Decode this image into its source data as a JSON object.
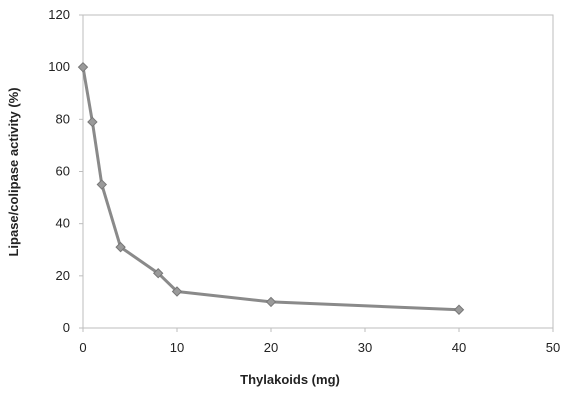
{
  "chart_data": {
    "type": "line",
    "title": "",
    "xlabel": "Thylakoids (mg)",
    "ylabel": "Lipase/colipase activity (%)",
    "xlim": [
      0,
      50
    ],
    "ylim": [
      0,
      120
    ],
    "xticks": [
      0,
      10,
      20,
      30,
      40,
      50
    ],
    "yticks": [
      0,
      20,
      40,
      60,
      80,
      100,
      120
    ],
    "xtick_labels": [
      "0",
      "10",
      "20",
      "30",
      "40",
      "50"
    ],
    "ytick_labels": [
      "0",
      "20",
      "40",
      "60",
      "80",
      "100",
      "120"
    ],
    "grid": false,
    "legend": "none",
    "series": [
      {
        "x": [
          0,
          1,
          2,
          4,
          8,
          10,
          20,
          40
        ],
        "y": [
          100,
          79,
          55,
          31,
          21,
          14,
          10,
          7
        ],
        "color": "#8a8a8a",
        "marker": "diamond"
      }
    ]
  }
}
